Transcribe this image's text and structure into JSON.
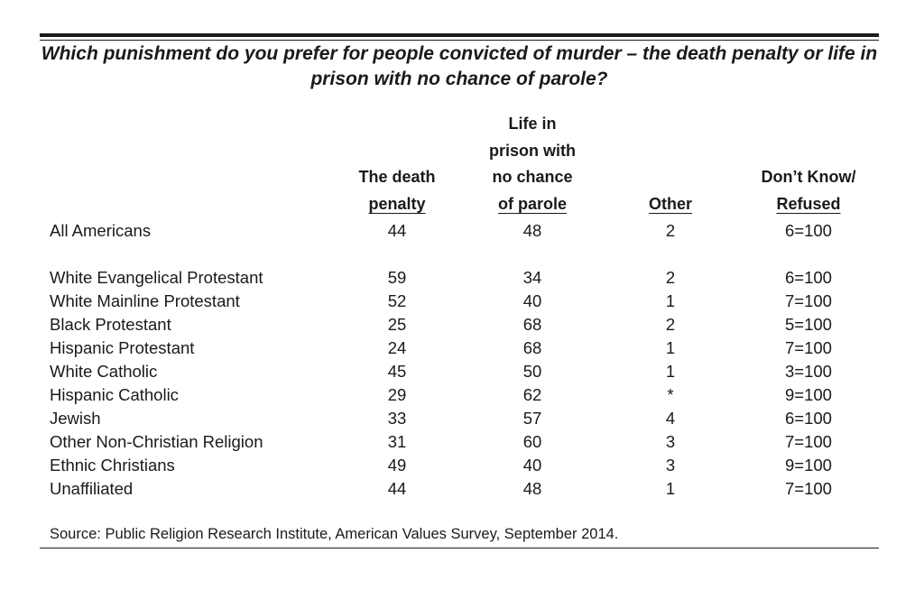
{
  "title": "Which punishment do you prefer for people convicted of murder – the death penalty or life in prison with no chance of parole?",
  "source": "Source: Public Religion Research Institute, American Values Survey, September 2014.",
  "columns": [
    {
      "lines": [
        "The death",
        "penalty"
      ]
    },
    {
      "lines": [
        "Life in",
        "prison with",
        "no chance",
        "of parole"
      ]
    },
    {
      "lines": [
        "Other"
      ]
    },
    {
      "lines": [
        "Don’t Know/",
        "Refused"
      ]
    }
  ],
  "rows": [
    {
      "label": "All Americans",
      "values": [
        "44",
        "48",
        "2",
        "6=100"
      ]
    },
    {
      "label": "White Evangelical Protestant",
      "values": [
        "59",
        "34",
        "2",
        "6=100"
      ]
    },
    {
      "label": "White Mainline Protestant",
      "values": [
        "52",
        "40",
        "1",
        "7=100"
      ]
    },
    {
      "label": "Black Protestant",
      "values": [
        "25",
        "68",
        "2",
        "5=100"
      ]
    },
    {
      "label": "Hispanic Protestant",
      "values": [
        "24",
        "68",
        "1",
        "7=100"
      ]
    },
    {
      "label": "White Catholic",
      "values": [
        "45",
        "50",
        "1",
        "3=100"
      ]
    },
    {
      "label": "Hispanic Catholic",
      "values": [
        "29",
        "62",
        "*",
        "9=100"
      ]
    },
    {
      "label": "Jewish",
      "values": [
        "33",
        "57",
        "4",
        "6=100"
      ]
    },
    {
      "label": "Other Non-Christian Religion",
      "values": [
        "31",
        "60",
        "3",
        "7=100"
      ]
    },
    {
      "label": "Ethnic Christians",
      "values": [
        "49",
        "40",
        "3",
        "9=100"
      ]
    },
    {
      "label": "Unaffiliated",
      "values": [
        "44",
        "48",
        "1",
        "7=100"
      ]
    }
  ],
  "chart_data": {
    "type": "table",
    "title": "Which punishment do you prefer for people convicted of murder – the death penalty or life in prison with no chance of parole?",
    "headers": [
      "The death penalty",
      "Life in prison with no chance of parole",
      "Other",
      "Don’t Know/ Refused"
    ],
    "categories": [
      "All Americans",
      "White Evangelical Protestant",
      "White Mainline Protestant",
      "Black Protestant",
      "Hispanic Protestant",
      "White Catholic",
      "Hispanic Catholic",
      "Jewish",
      "Other Non-Christian Religion",
      "Ethnic Christians",
      "Unaffiliated"
    ],
    "series": [
      {
        "name": "The death penalty",
        "values": [
          44,
          59,
          52,
          25,
          24,
          45,
          29,
          33,
          31,
          49,
          44
        ]
      },
      {
        "name": "Life in prison with no chance of parole",
        "values": [
          48,
          34,
          40,
          68,
          68,
          50,
          62,
          57,
          60,
          40,
          48
        ]
      },
      {
        "name": "Other",
        "values": [
          2,
          2,
          1,
          2,
          1,
          1,
          "*",
          4,
          3,
          3,
          1
        ]
      },
      {
        "name": "Don’t Know/ Refused",
        "values": [
          "6=100",
          "6=100",
          "7=100",
          "5=100",
          "7=100",
          "3=100",
          "9=100",
          "6=100",
          "7=100",
          "9=100",
          "7=100"
        ]
      }
    ]
  }
}
